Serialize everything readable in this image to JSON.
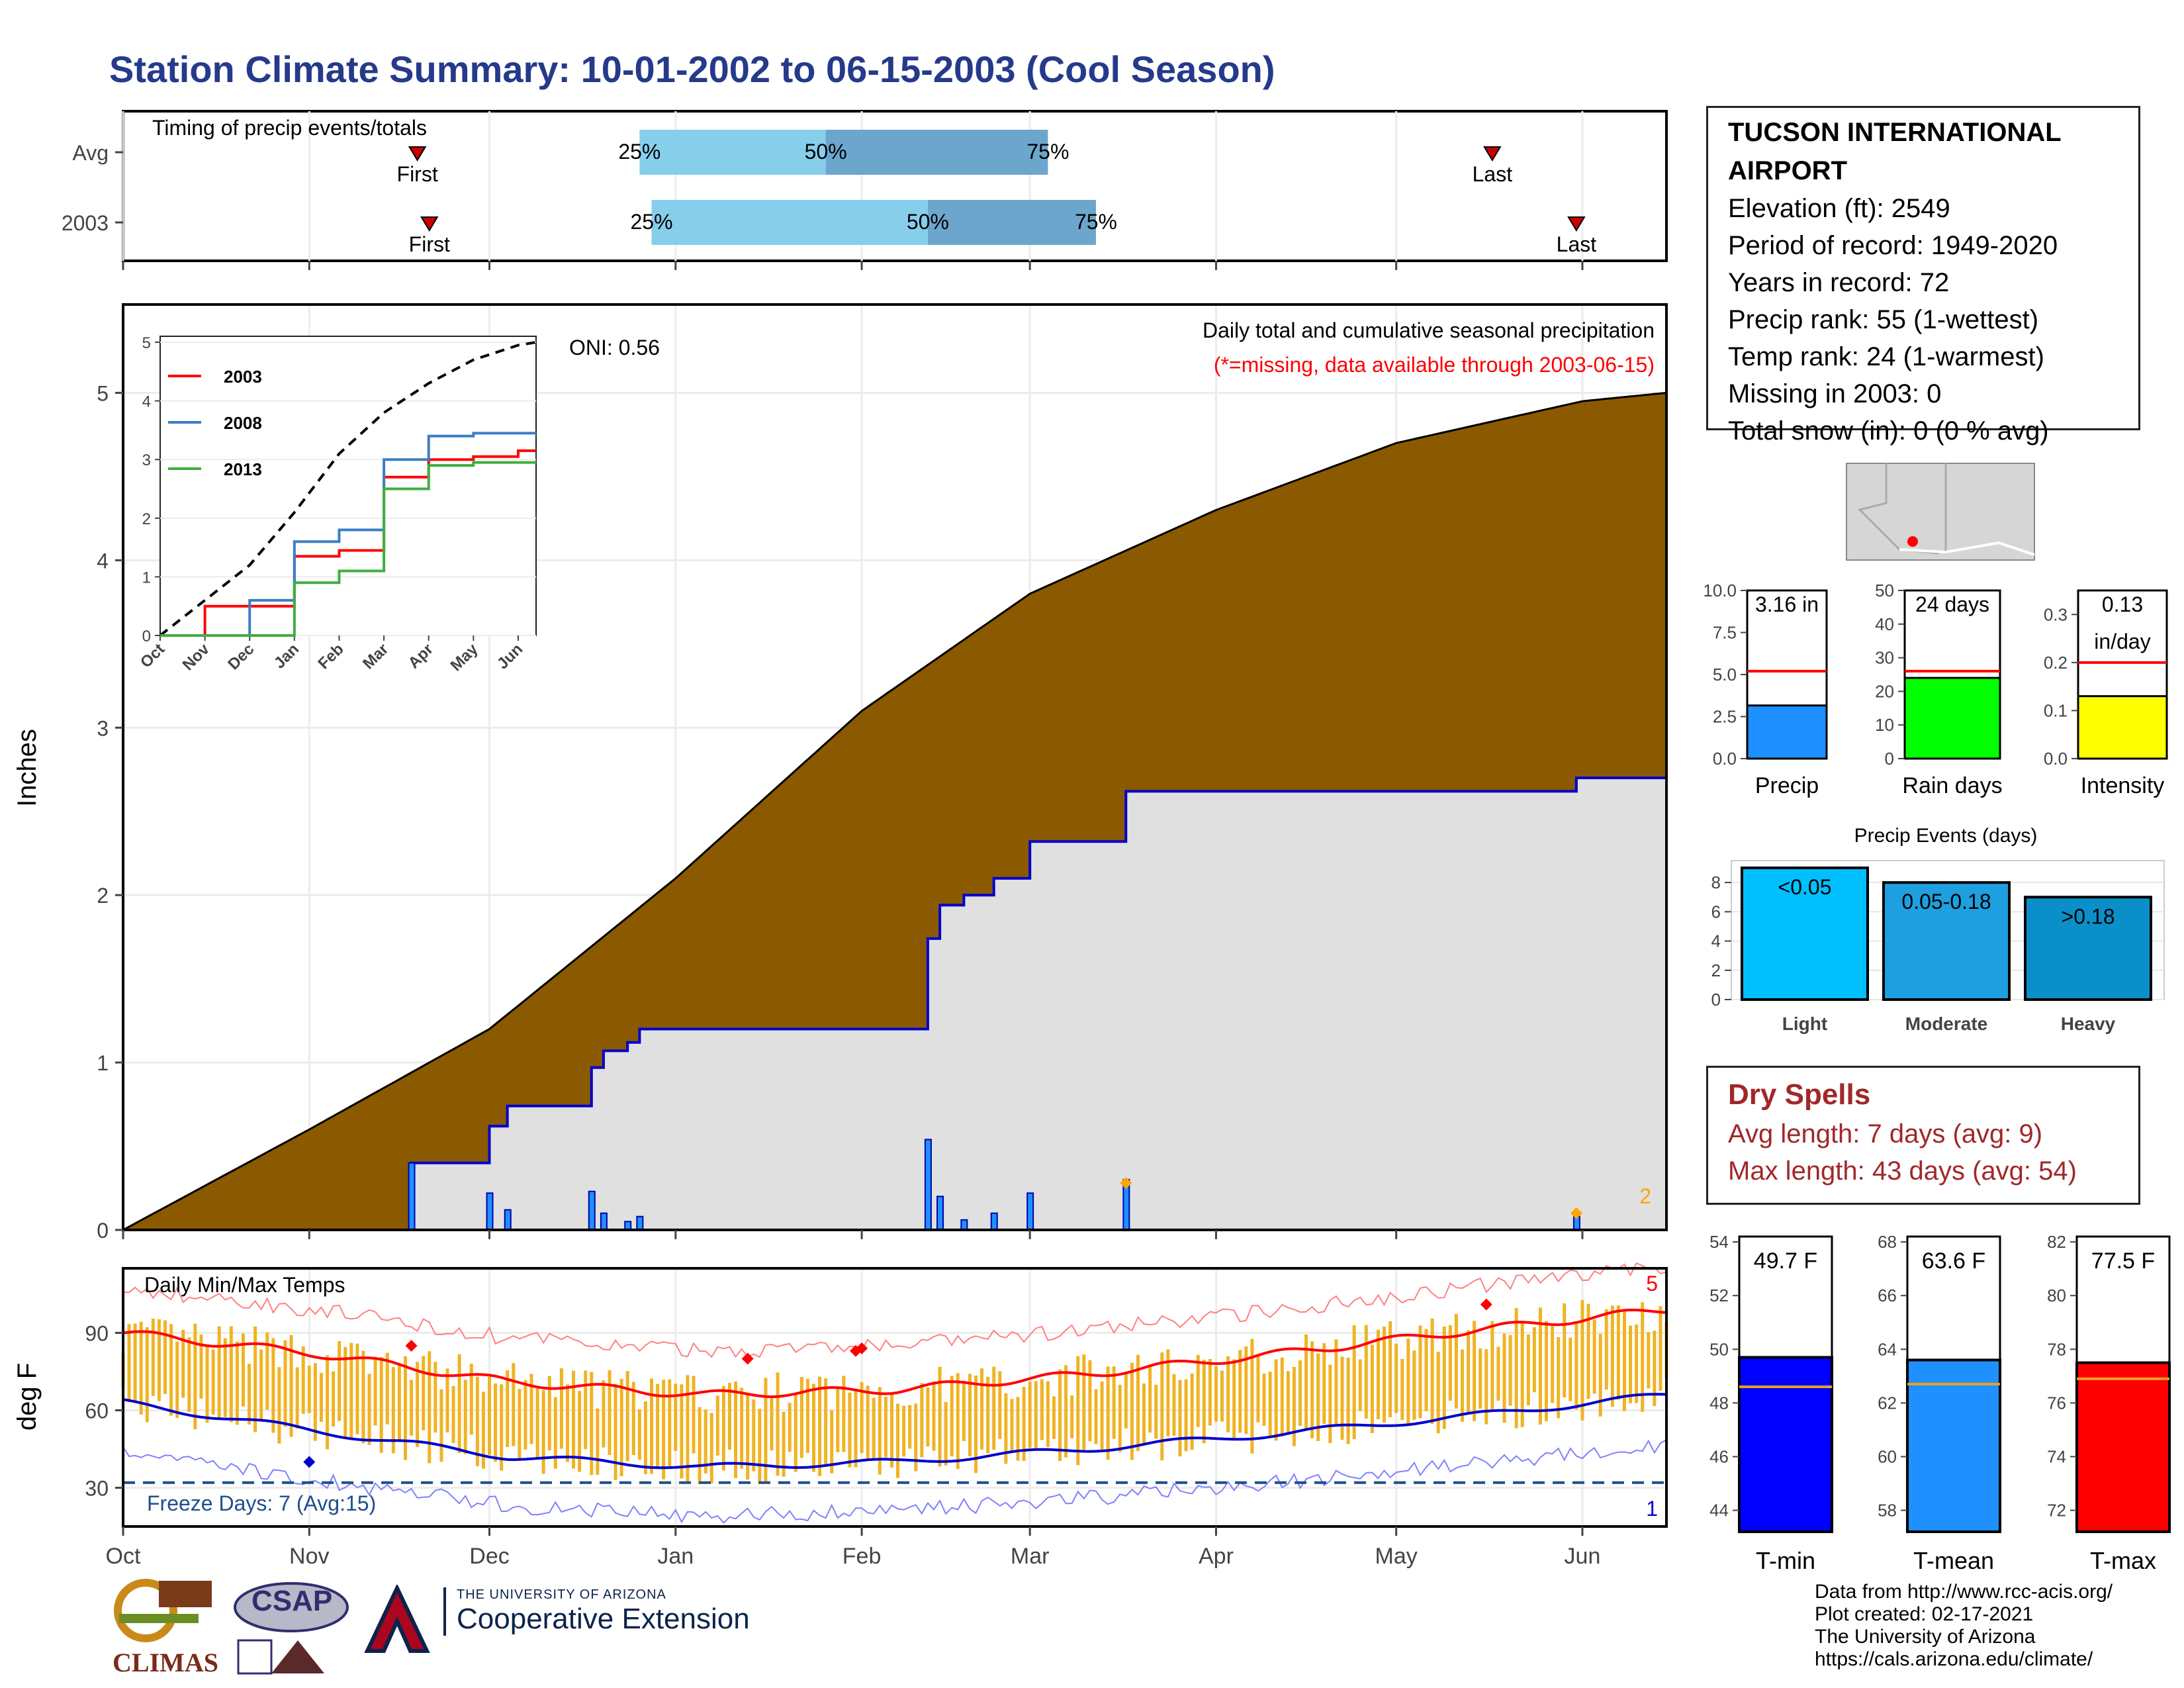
{
  "title": "Station Climate Summary: 10-01-2002 to 06-15-2003 (Cool Season)",
  "colors": {
    "title": "#253A8A",
    "cum_total": "#8B5A00",
    "cum_2003": "#E0E0E0",
    "cum_line": "#0000CC",
    "tmax": "#FF0000",
    "tmin": "#0000CC",
    "bars": "#F0B323",
    "precip_bar": "#1E90FF",
    "rain_bar": "#00FF00",
    "intensity_bar": "#FFFF00",
    "avg_line": "#FF0000"
  },
  "timing": {
    "title": "Timing of precip events/totals",
    "rows": [
      {
        "label": "Avg",
        "first_label": "First",
        "last_label": "Last",
        "first": "Nov 19",
        "p25": "Dec 26",
        "p50": "Jan 26",
        "p75": "Mar 4",
        "last": "May 17"
      },
      {
        "label": "2003",
        "first_label": "First",
        "last_label": "Last",
        "first": "Nov 21",
        "p25": "Dec 28",
        "p50": "Feb 12",
        "p75": "Mar 12",
        "last": "May 31"
      }
    ],
    "pct_labels": [
      "25%",
      "50%",
      "75%"
    ]
  },
  "precip": {
    "oni": "ONI: 0.56",
    "note1": "Daily total and cumulative seasonal precipitation",
    "note2": "(*=missing, data available through 2003-06-15)",
    "ylabel": "Inches",
    "corner_count": "2",
    "y_ticks": [
      "0",
      "1",
      "2",
      "3",
      "4",
      "5"
    ]
  },
  "inset": {
    "y_ticks": [
      "0",
      "1",
      "2",
      "3",
      "4",
      "5"
    ],
    "x_ticks": [
      "Oct",
      "Nov",
      "Dec",
      "Jan",
      "Feb",
      "Mar",
      "Apr",
      "May",
      "Jun"
    ],
    "legend": [
      "2003",
      "2008",
      "2013"
    ]
  },
  "temps": {
    "title": "Daily Min/Max Temps",
    "ylabel": "deg F",
    "freeze": "Freeze Days: 7 (Avg:15)",
    "corner_top": "5",
    "corner_bottom": "1",
    "y_ticks": [
      "30",
      "60",
      "90"
    ]
  },
  "months": [
    "Oct",
    "Nov",
    "Dec",
    "Jan",
    "Feb",
    "Mar",
    "Apr",
    "May",
    "Jun"
  ],
  "station": {
    "name": "TUCSON INTERNATIONAL AIRPORT",
    "elevation": "Elevation (ft): 2549",
    "period": "Period of record: 1949-2020",
    "years": "Years in record: 72",
    "precip_rank": "Precip rank: 55 (1-wettest)",
    "temp_rank": "Temp rank: 24 (1-warmest)",
    "missing": "Missing in 2003: 0",
    "snow": "Total snow (in): 0 (0 % avg)"
  },
  "mini": {
    "precip": {
      "label": "3.16 in",
      "xlabel": "Precip",
      "ticks": [
        "0.0",
        "2.5",
        "5.0",
        "7.5",
        "10.0"
      ]
    },
    "rain": {
      "label": "24 days",
      "xlabel": "Rain days",
      "ticks": [
        "0",
        "10",
        "20",
        "30",
        "40",
        "50"
      ]
    },
    "intensity": {
      "label1": "0.13",
      "label2": "in/day",
      "xlabel": "Intensity",
      "ticks": [
        "0.0",
        "0.1",
        "0.2",
        "0.3"
      ]
    }
  },
  "events": {
    "title": "Precip Events (days)",
    "ticks": [
      "0",
      "2",
      "4",
      "6",
      "8"
    ],
    "bars": [
      {
        "cat": "Light",
        "range": "<0.05",
        "value": 9
      },
      {
        "cat": "Moderate",
        "range": "0.05-0.18",
        "value": 8
      },
      {
        "cat": "Heavy",
        "range": ">0.18",
        "value": 7
      }
    ]
  },
  "dry": {
    "title": "Dry Spells",
    "avg": "Avg length: 7 days (avg: 9)",
    "max": "Max length: 43 days (avg: 54)"
  },
  "tbars": {
    "tmin": {
      "label": "49.7 F",
      "xlabel": "T-min",
      "ticks": [
        "44",
        "46",
        "48",
        "50",
        "52",
        "54"
      ]
    },
    "tmean": {
      "label": "63.6 F",
      "xlabel": "T-mean",
      "ticks": [
        "58",
        "60",
        "62",
        "64",
        "66",
        "68"
      ]
    },
    "tmax": {
      "label": "77.5 F",
      "xlabel": "T-max",
      "ticks": [
        "72",
        "74",
        "76",
        "78",
        "80",
        "82"
      ]
    }
  },
  "credits": [
    "Data from http://www.rcc-acis.org/",
    "Plot created: 02-17-2021",
    "The University of Arizona",
    "https://cals.arizona.edu/climate/"
  ],
  "logos": {
    "climas": "CLIMAS",
    "csap": "CSAP",
    "ua_small": "THE UNIVERSITY OF ARIZONA",
    "ua_big": "Cooperative Extension"
  },
  "chart_data": [
    {
      "type": "area",
      "title": "Daily total and cumulative seasonal precipitation",
      "ylabel": "Inches",
      "ylim": [
        0,
        5.5
      ],
      "x": [
        "2002-10-01",
        "2002-11-01",
        "2002-12-01",
        "2003-01-01",
        "2003-02-01",
        "2003-03-01",
        "2003-04-01",
        "2003-05-01",
        "2003-06-01",
        "2003-06-15"
      ],
      "series": [
        {
          "name": "Avg cumulative",
          "values": [
            0.0,
            0.6,
            1.2,
            2.1,
            3.1,
            3.8,
            4.3,
            4.7,
            4.95,
            5.0
          ]
        },
        {
          "name": "2003 cumulative",
          "values": [
            0.0,
            0.5,
            0.5,
            1.35,
            1.45,
            2.7,
            3.0,
            3.05,
            3.1,
            3.16
          ]
        }
      ],
      "daily_precip": [
        {
          "date": "2002-11-18",
          "value": 0.4
        },
        {
          "date": "2002-12-01",
          "value": 0.22
        },
        {
          "date": "2002-12-04",
          "value": 0.12
        },
        {
          "date": "2002-12-18",
          "value": 0.23
        },
        {
          "date": "2002-12-20",
          "value": 0.1
        },
        {
          "date": "2002-12-24",
          "value": 0.05
        },
        {
          "date": "2002-12-26",
          "value": 0.08
        },
        {
          "date": "2003-02-12",
          "value": 0.54
        },
        {
          "date": "2003-02-14",
          "value": 0.2
        },
        {
          "date": "2003-02-18",
          "value": 0.06
        },
        {
          "date": "2003-02-23",
          "value": 0.1
        },
        {
          "date": "2003-03-01",
          "value": 0.22
        },
        {
          "date": "2003-03-17",
          "value": 0.3
        },
        {
          "date": "2003-05-31",
          "value": 0.08
        }
      ]
    },
    {
      "type": "line",
      "title": "",
      "ylim": [
        0,
        5
      ],
      "x": [
        "Oct",
        "Nov",
        "Dec",
        "Jan",
        "Feb",
        "Mar",
        "Apr",
        "May",
        "Jun"
      ],
      "series": [
        {
          "name": "2003",
          "values": [
            0.0,
            0.5,
            0.5,
            1.35,
            1.45,
            2.7,
            3.0,
            3.05,
            3.15
          ]
        },
        {
          "name": "2008",
          "values": [
            0.0,
            0.0,
            0.6,
            1.6,
            1.8,
            3.0,
            3.4,
            3.45,
            3.45
          ]
        },
        {
          "name": "2013",
          "values": [
            0.0,
            0.0,
            0.0,
            0.9,
            1.1,
            2.5,
            2.9,
            2.95,
            2.95
          ]
        }
      ]
    },
    {
      "type": "line",
      "title": "Daily Min/Max Temps",
      "ylabel": "deg F",
      "ylim": [
        15,
        115
      ],
      "x": [
        "Oct",
        "Nov",
        "Dec",
        "Jan",
        "Feb",
        "Mar",
        "Apr",
        "May",
        "Jun"
      ],
      "series": [
        {
          "name": "Avg max",
          "values": [
            90,
            82,
            71,
            66,
            68,
            74,
            82,
            91,
            99
          ]
        },
        {
          "name": "Avg min",
          "values": [
            63,
            52,
            42,
            38,
            40,
            45,
            51,
            58,
            66
          ]
        }
      ]
    },
    {
      "type": "bar",
      "title": "Precip Events (days)",
      "categories": [
        "Light",
        "Moderate",
        "Heavy"
      ],
      "values": [
        9,
        8,
        7
      ]
    }
  ]
}
